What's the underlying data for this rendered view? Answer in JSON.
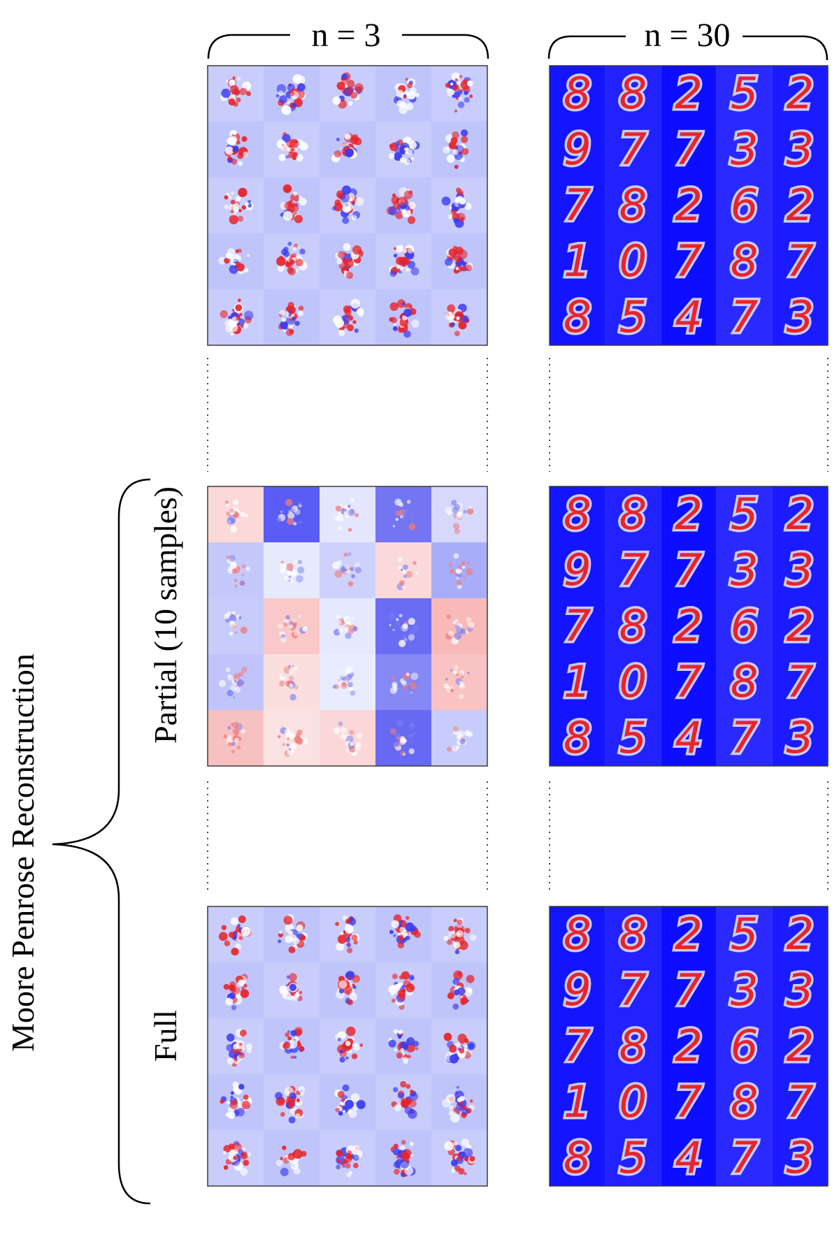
{
  "figure": {
    "column_labels": {
      "left": "n = 3",
      "right": "n = 30"
    },
    "group_label": "Moore Penrose Reconstruction",
    "row_labels": {
      "partial": "Partial (10 samples)",
      "full": "Full"
    }
  },
  "colors": {
    "red": "#e8242a",
    "blue": "#1a1aff",
    "light_blue": "#cfd3fb",
    "white": "#ffffff",
    "frame": "#3a3a3a"
  },
  "grids": {
    "right_digits": [
      [
        "8",
        "8",
        "2",
        "5",
        "2"
      ],
      [
        "9",
        "7",
        "7",
        "3",
        "3"
      ],
      [
        "7",
        "8",
        "2",
        "6",
        "2"
      ],
      [
        "1",
        "0",
        "7",
        "8",
        "7"
      ],
      [
        "8",
        "5",
        "4",
        "7",
        "3"
      ]
    ]
  }
}
